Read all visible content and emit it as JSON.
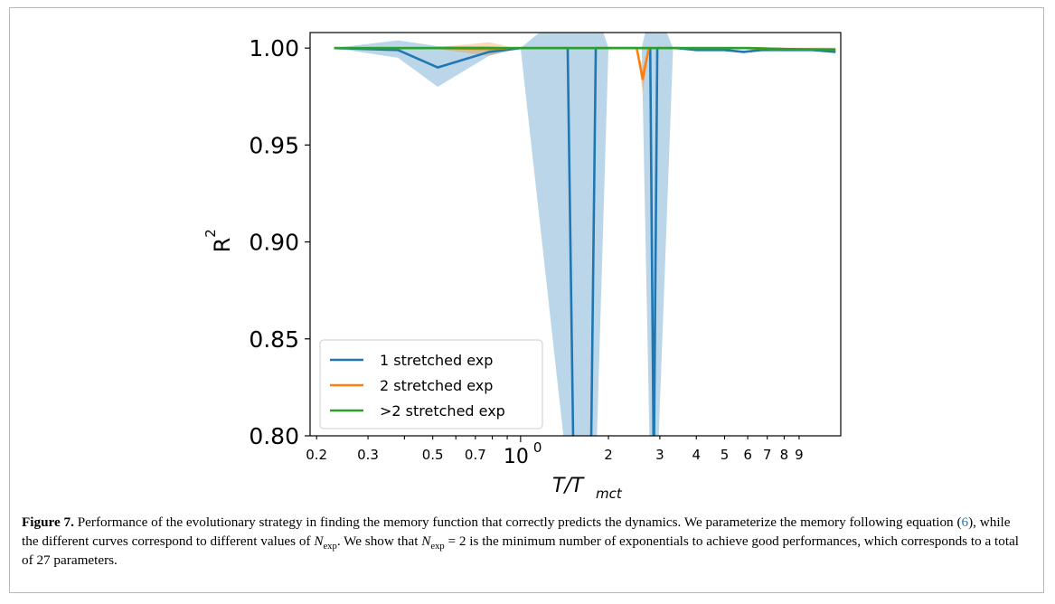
{
  "chart_data": {
    "type": "line",
    "xscale": "log",
    "xlabel_main": "T/T",
    "xlabel_sub": "mct",
    "ylabel_main": "R",
    "ylabel_sup": "2",
    "ylim": [
      0.8,
      1.008
    ],
    "xlim": [
      0.19,
      12.5
    ],
    "y_ticks": [
      {
        "value": 0.8,
        "label": "0.80"
      },
      {
        "value": 0.85,
        "label": "0.85"
      },
      {
        "value": 0.9,
        "label": "0.90"
      },
      {
        "value": 0.95,
        "label": "0.95"
      },
      {
        "value": 1.0,
        "label": "1.00"
      }
    ],
    "x_ticks": [
      {
        "value": 0.2,
        "label": "0.2",
        "major": false
      },
      {
        "value": 0.3,
        "label": "0.3",
        "major": false
      },
      {
        "value": 0.5,
        "label": "0.5",
        "major": false
      },
      {
        "value": 0.7,
        "label": "0.7",
        "major": false
      },
      {
        "value": 1.0,
        "label": "10",
        "sup": "0",
        "major": true
      },
      {
        "value": 2,
        "label": "2",
        "major": false
      },
      {
        "value": 3,
        "label": "3",
        "major": false
      },
      {
        "value": 4,
        "label": "4",
        "major": false
      },
      {
        "value": 5,
        "label": "5",
        "major": false
      },
      {
        "value": 6,
        "label": "6",
        "major": false
      },
      {
        "value": 7,
        "label": "7",
        "major": false
      },
      {
        "value": 8,
        "label": "8",
        "major": false
      },
      {
        "value": 9,
        "label": "9",
        "major": false
      }
    ],
    "x_minor_unlabeled": [
      0.4,
      0.6,
      0.8,
      0.9
    ],
    "grid": false,
    "legend_position": "lower-left",
    "series": [
      {
        "name": "1 stretched exp",
        "color": "#1f77b4",
        "x": [
          0.23,
          0.38,
          0.52,
          0.78,
          1.0,
          1.45,
          1.52,
          1.74,
          1.81,
          2.0,
          2.6,
          2.78,
          2.86,
          2.94,
          3.33,
          3.42,
          4.0,
          5.0,
          5.8,
          6.7,
          8.0,
          10.0,
          12.0
        ],
        "y": [
          1.0,
          0.999,
          0.99,
          0.998,
          1.0,
          1.0,
          0.78,
          0.78,
          1.0,
          1.0,
          1.0,
          1.0,
          0.78,
          1.0,
          1.0,
          1.0,
          0.999,
          0.999,
          0.998,
          0.999,
          0.999,
          0.999,
          0.998
        ],
        "band_upper": [
          1.0,
          1.004,
          1.001,
          1.001,
          1.0,
          1.02,
          1.02,
          1.02,
          1.02,
          1.0,
          1.0,
          1.02,
          1.02,
          1.02,
          1.0,
          1.0,
          0.9995,
          0.9995,
          0.9985,
          0.9995,
          0.9995,
          0.9995,
          0.9985
        ],
        "band_lower": [
          1.0,
          0.995,
          0.98,
          0.996,
          1.0,
          0.78,
          0.78,
          0.78,
          0.78,
          1.0,
          1.0,
          0.78,
          0.78,
          0.78,
          1.0,
          1.0,
          0.9985,
          0.9985,
          0.9975,
          0.9985,
          0.9985,
          0.9985,
          0.9975
        ]
      },
      {
        "name": "2 stretched exp",
        "color": "#ff7f0e",
        "x": [
          0.23,
          0.52,
          0.78,
          0.93,
          1.0,
          2.0,
          2.5,
          2.62,
          2.75,
          3.0,
          4.0,
          6.0,
          8.0,
          12.0
        ],
        "y": [
          1.0,
          1.0,
          0.9995,
          1.0,
          1.0,
          1.0,
          1.0,
          0.984,
          1.0,
          1.0,
          1.0,
          1.0,
          0.9995,
          0.9995
        ],
        "band_upper": [
          1.0,
          1.0005,
          1.003,
          1.0005,
          1.0,
          1.0,
          1.0,
          0.99,
          1.0,
          1.0,
          1.0,
          1.0,
          1.0,
          1.0
        ],
        "band_lower": [
          1.0,
          0.9995,
          0.996,
          0.9995,
          1.0,
          1.0,
          1.0,
          0.977,
          1.0,
          1.0,
          1.0,
          1.0,
          0.999,
          0.999
        ]
      },
      {
        "name": ">2 stretched exp",
        "color": "#2ca02c",
        "x": [
          0.23,
          0.5,
          0.78,
          1.0,
          2.0,
          3.0,
          4.0,
          6.0,
          8.0,
          12.0
        ],
        "y": [
          1.0,
          1.0,
          1.0,
          1.0,
          1.0,
          1.0,
          1.0,
          1.0,
          0.9995,
          0.999
        ]
      }
    ]
  },
  "caption": {
    "fig_label": "Figure 7.",
    "text1": " Performance of the evolutionary strategy in finding the memory function that correctly predicts the dynamics. We parameterize the memory following equation (",
    "eq_ref": "6",
    "text2": "), while the different curves correspond to different values of ",
    "n_main": "N",
    "n_sub": "exp",
    "text3": ". We show that ",
    "n_main2": "N",
    "n_sub2": "exp",
    "text4": " = 2 is the minimum number of exponentials to achieve good performances, which corresponds to a total of 27 parameters."
  }
}
